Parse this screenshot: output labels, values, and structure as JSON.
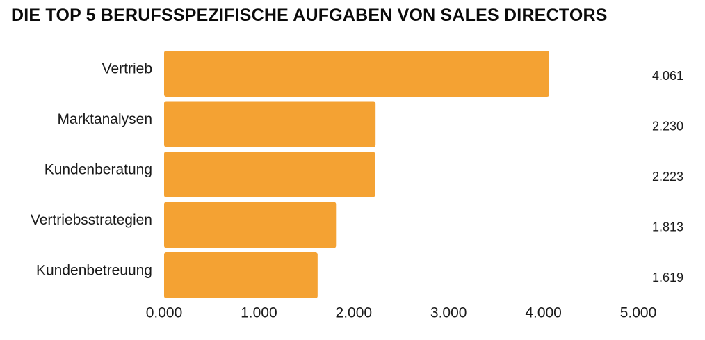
{
  "chart_data": {
    "type": "bar",
    "orientation": "horizontal",
    "title": "DIE TOP 5 BERUFSSPEZIFISCHE AUFGABEN VON SALES DIRECTORS",
    "categories": [
      "Vertrieb",
      "Marktanalysen",
      "Kundenberatung",
      "Vertriebsstrategien",
      "Kundenbetreuung"
    ],
    "values": [
      4.061,
      2.23,
      2.223,
      1.813,
      1.619
    ],
    "value_labels": [
      "4.061",
      "2.230",
      "2.223",
      "1.813",
      "1.619"
    ],
    "xlim": [
      0,
      5
    ],
    "xticks": [
      0,
      1,
      2,
      3,
      4,
      5
    ],
    "xtick_labels": [
      "0.000",
      "1.000",
      "2.000",
      "3.000",
      "4.000",
      "5.000"
    ],
    "xlabel": "",
    "ylabel": "",
    "grid": false,
    "bar_color": "#F4A233"
  }
}
